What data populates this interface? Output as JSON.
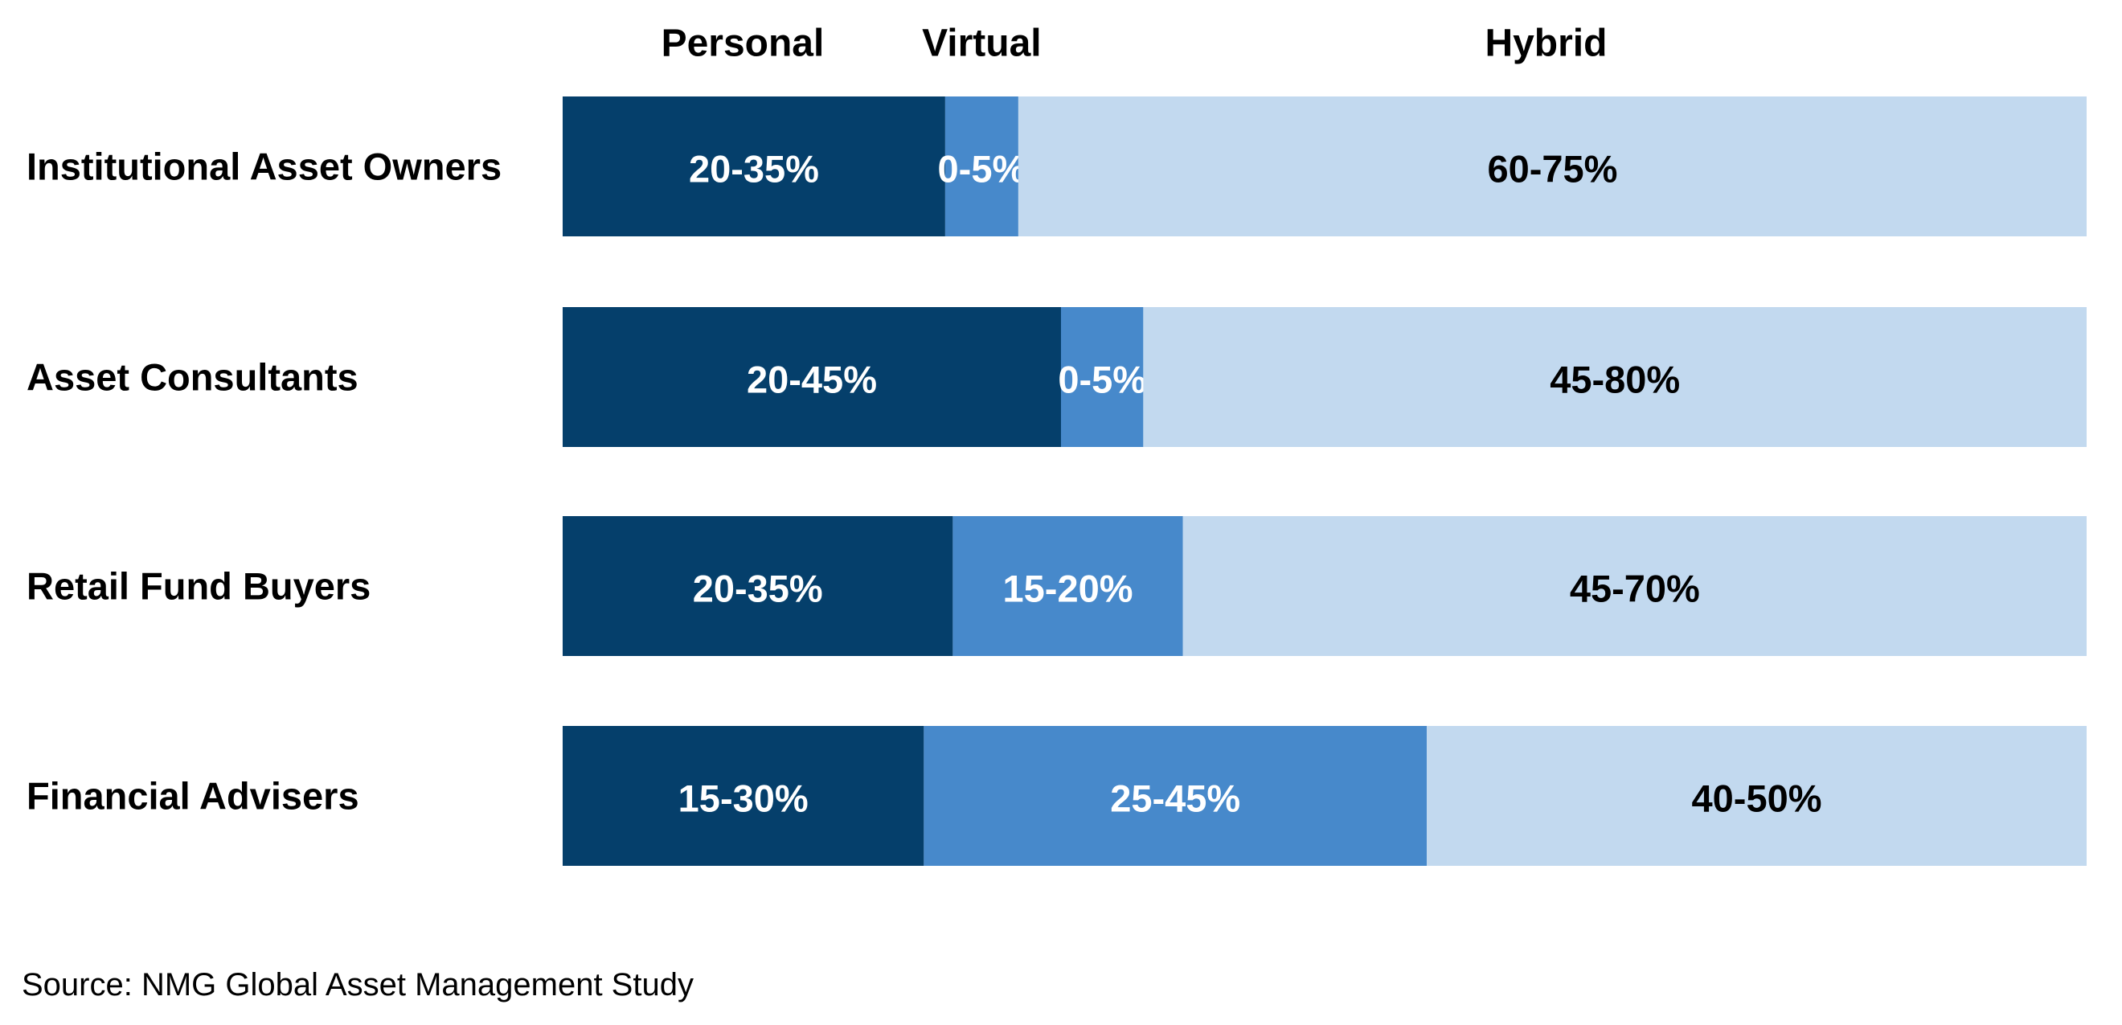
{
  "chart_data": {
    "type": "bar",
    "orientation": "horizontal",
    "stacked": true,
    "title": "",
    "xlabel": "",
    "ylabel": "",
    "grid": false,
    "legend_position": "top",
    "categories": [
      "Institutional Asset Owners",
      "Asset Consultants",
      "Retail Fund Buyers",
      "Financial Advisers"
    ],
    "series": [
      {
        "name": "Personal",
        "color": "#053F6B",
        "text_color": "#FFFFFF",
        "labels": [
          "20-35%",
          "20-45%",
          "20-35%",
          "15-30%"
        ],
        "values": [
          25.1,
          32.7,
          25.6,
          23.7
        ]
      },
      {
        "name": "Virtual",
        "color": "#4789CB",
        "text_color": "#FFFFFF",
        "labels": [
          "0-5%",
          "0-5%",
          "15-20%",
          "25-45%"
        ],
        "values": [
          4.8,
          5.4,
          15.1,
          33.0
        ]
      },
      {
        "name": "Hybrid",
        "color": "#C2D9EF",
        "text_color": "#000000",
        "labels": [
          "60-75%",
          "45-80%",
          "45-70%",
          "40-50%"
        ],
        "values": [
          70.1,
          61.9,
          59.3,
          43.3
        ]
      }
    ],
    "source": "Source: NMG Global Asset Management Study"
  }
}
